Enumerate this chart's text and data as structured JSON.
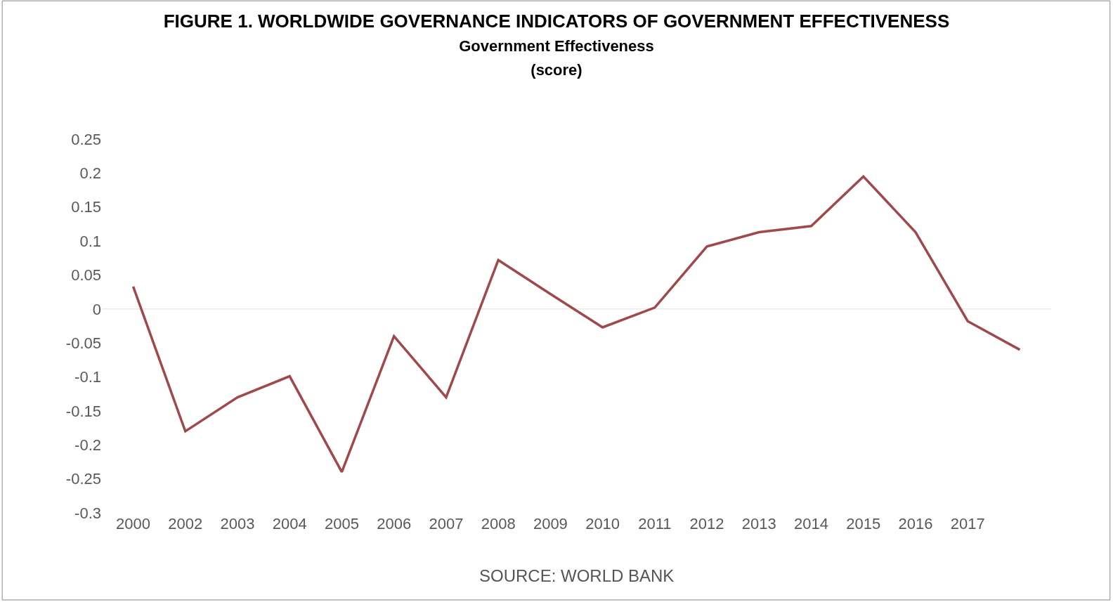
{
  "chart_data": {
    "type": "line",
    "title": "FIGURE 1. WORLDWIDE GOVERNANCE INDICATORS OF GOVERNMENT EFFECTIVENESS",
    "subtitle": "Government Effectiveness\n(score)",
    "categories": [
      "2000",
      "2002",
      "2003",
      "2004",
      "2005",
      "2006",
      "2007",
      "2008",
      "2009",
      "2010",
      "2011",
      "2012",
      "2013",
      "2014",
      "2015",
      "2016",
      "2017",
      null
    ],
    "series": [
      {
        "color": "#a0494d",
        "values": [
          0.033,
          -0.18,
          -0.13,
          -0.099,
          -0.24,
          -0.04,
          -0.13,
          0.072,
          0.022,
          -0.027,
          0.002,
          0.092,
          0.113,
          0.122,
          0.195,
          0.113,
          -0.018,
          -0.06
        ]
      }
    ],
    "ylim": [
      -0.3,
      0.25
    ],
    "yticks": [
      -0.3,
      -0.25,
      -0.2,
      -0.15,
      -0.1,
      -0.05,
      0,
      0.05,
      0.1,
      0.15,
      0.2,
      0.25
    ],
    "ref_lines": [
      {
        "axis": "y",
        "value": 0,
        "color": "#e0e0e0"
      }
    ],
    "annotations": [
      "SOURCE: WORLD BANK"
    ],
    "grid": false,
    "legend": false,
    "marker": "none",
    "line_style": "solid"
  }
}
